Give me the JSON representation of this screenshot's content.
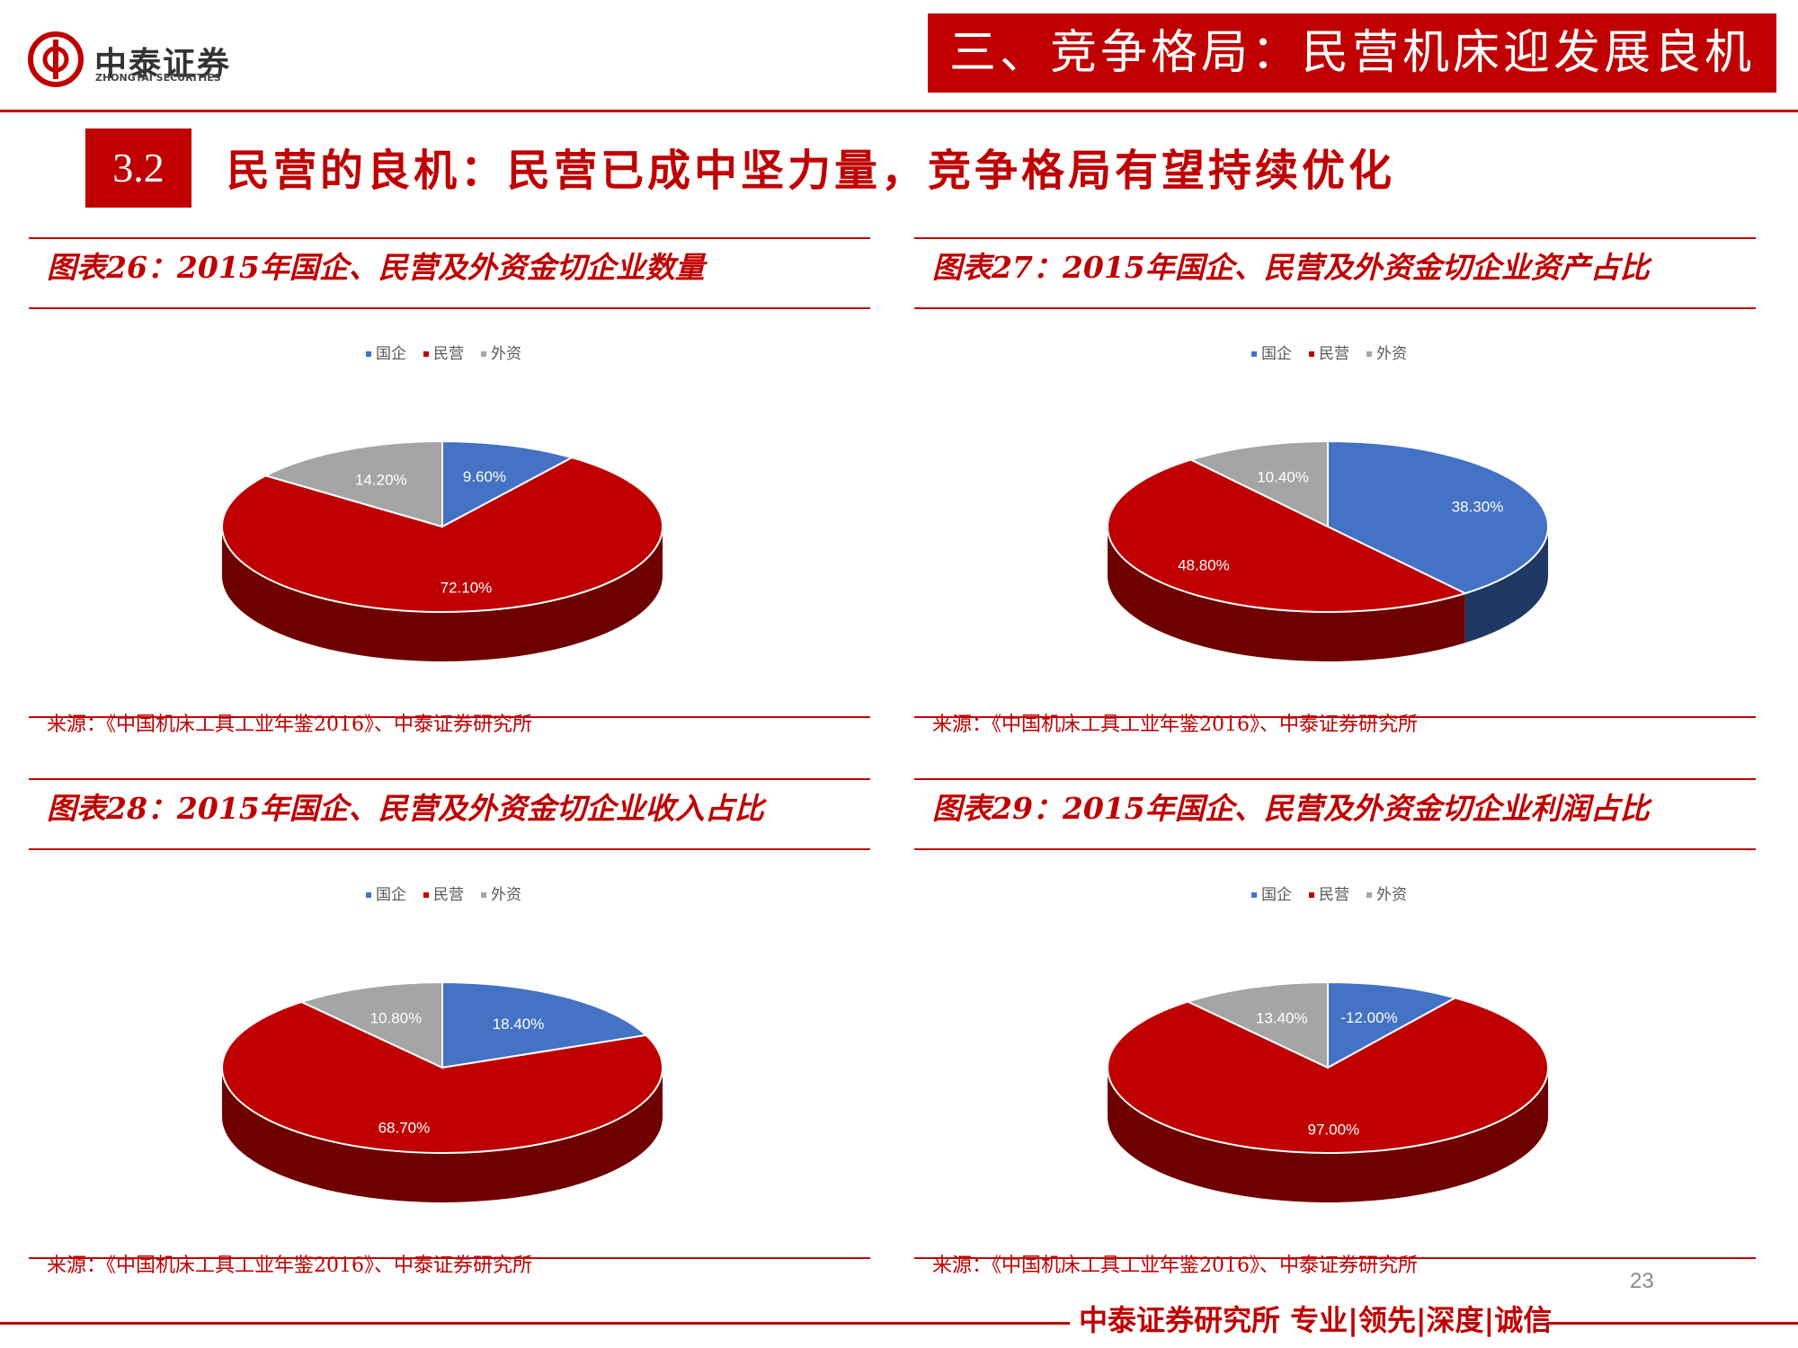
{
  "header": {
    "logo_text": "中泰证券",
    "logo_sub": "ZHONGTAI SECURITIES",
    "section_title": "三、竞争格局：民营机床迎发展良机",
    "subsection_number": "3.2",
    "subsection_title": "民营的良机：民营已成中坚力量，竞争格局有望持续优化"
  },
  "colors": {
    "accent": "#c00000",
    "state": "#4472c4",
    "private": "#c00000",
    "foreign": "#a5a5a5"
  },
  "chart_data": [
    {
      "type": "pie",
      "title": "图表26：2015年国企、民营及外资金切企业数量",
      "categories": [
        "国企",
        "民营",
        "外资"
      ],
      "values": [
        9.6,
        72.1,
        14.2
      ],
      "labels": [
        "9.60%",
        "72.10%",
        "14.20%"
      ],
      "legend_position": "top-center",
      "source": "来源：《中国机床工具工业年鉴2016》、中泰证券研究所"
    },
    {
      "type": "pie",
      "title": "图表27：2015年国企、民营及外资金切企业资产占比",
      "categories": [
        "国企",
        "民营",
        "外资"
      ],
      "values": [
        38.3,
        48.8,
        10.4
      ],
      "labels": [
        "38.30%",
        "48.80%",
        "10.40%"
      ],
      "legend_position": "top-center",
      "source": "来源：《中国机床工具工业年鉴2016》、中泰证券研究所"
    },
    {
      "type": "pie",
      "title": "图表28：2015年国企、民营及外资金切企业收入占比",
      "categories": [
        "国企",
        "民营",
        "外资"
      ],
      "values": [
        18.4,
        68.7,
        10.8
      ],
      "labels": [
        "18.40%",
        "68.70%",
        "10.80%"
      ],
      "legend_position": "top-center",
      "source": "来源：《中国机床工具工业年鉴2016》、中泰证券研究所"
    },
    {
      "type": "pie",
      "title": "图表29：2015年国企、民营及外资金切企业利润占比",
      "categories": [
        "国企",
        "民营",
        "外资"
      ],
      "values": [
        -12.0,
        97.0,
        13.4
      ],
      "labels": [
        "-12.00%",
        "97.00%",
        "13.40%"
      ],
      "legend_position": "top-center",
      "source": "来源：《中国机床工具工业年鉴2016》、中泰证券研究所"
    }
  ],
  "footer": {
    "slogan": "中泰证券研究所 专业|领先|深度|诚信",
    "page_number": "23"
  }
}
